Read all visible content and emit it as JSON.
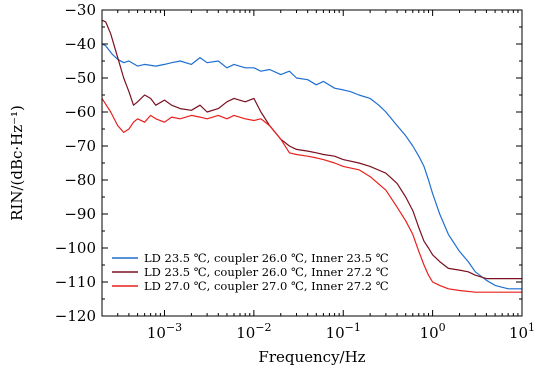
{
  "chart_data": {
    "type": "line",
    "title": "",
    "xlabel": "Frequency/Hz",
    "ylabel": "RIN/(dBc·Hz⁻¹)",
    "xscale": "log",
    "xlim": [
      0.0002,
      10
    ],
    "ylim": [
      -120,
      -30
    ],
    "grid": false,
    "legend_position": "lower-left",
    "x_ticks": [
      {
        "value": 0.001,
        "base": "10",
        "exp": "−3"
      },
      {
        "value": 0.01,
        "base": "10",
        "exp": "−2"
      },
      {
        "value": 0.1,
        "base": "10",
        "exp": "−1"
      },
      {
        "value": 1,
        "base": "10",
        "exp": "0"
      },
      {
        "value": 10,
        "base": "10",
        "exp": "1"
      }
    ],
    "y_ticks": [
      {
        "value": -30,
        "label": "−30"
      },
      {
        "value": -40,
        "label": "−40"
      },
      {
        "value": -50,
        "label": "−50"
      },
      {
        "value": -60,
        "label": "−60"
      },
      {
        "value": -70,
        "label": "−70"
      },
      {
        "value": -80,
        "label": "−80"
      },
      {
        "value": -90,
        "label": "−90"
      },
      {
        "value": -100,
        "label": "−100"
      },
      {
        "value": -110,
        "label": "−110"
      },
      {
        "value": -120,
        "label": "−120"
      }
    ],
    "series": [
      {
        "name": "LD 23.5 ℃, coupler 26.0 ℃, Inner 23.5 ℃",
        "color": "#1f6fd1",
        "x": [
          0.0002,
          0.00022,
          0.00026,
          0.0003,
          0.00035,
          0.0004,
          0.0005,
          0.0006,
          0.0008,
          0.001,
          0.0012,
          0.0015,
          0.002,
          0.0025,
          0.003,
          0.004,
          0.005,
          0.006,
          0.008,
          0.01,
          0.012,
          0.015,
          0.02,
          0.025,
          0.03,
          0.04,
          0.05,
          0.06,
          0.08,
          0.1,
          0.12,
          0.15,
          0.2,
          0.25,
          0.3,
          0.4,
          0.5,
          0.6,
          0.7,
          0.8,
          0.9,
          1.0,
          1.2,
          1.5,
          2.0,
          2.5,
          3.0,
          4.0,
          5.0,
          7.0,
          10.0
        ],
        "y": [
          -40,
          -40.5,
          -43,
          -44.5,
          -45.5,
          -45,
          -46.5,
          -46,
          -46.5,
          -46,
          -45.5,
          -45,
          -46,
          -44,
          -45.5,
          -45,
          -47,
          -46,
          -47,
          -47,
          -48,
          -47.5,
          -49,
          -48,
          -50,
          -50.5,
          -52,
          -51,
          -53,
          -53.5,
          -54,
          -55,
          -56,
          -58,
          -60,
          -64,
          -67,
          -70,
          -73,
          -76,
          -80,
          -84,
          -90,
          -96,
          -101,
          -104,
          -107,
          -109.5,
          -111,
          -112,
          -112
        ]
      },
      {
        "name": "LD 23.5 ℃, coupler 26.0 ℃, Inner 27.2 ℃",
        "color": "#7a1020",
        "x": [
          0.0002,
          0.00022,
          0.00025,
          0.0003,
          0.00035,
          0.0004,
          0.00045,
          0.0005,
          0.0006,
          0.0007,
          0.0008,
          0.001,
          0.0012,
          0.0015,
          0.002,
          0.0025,
          0.003,
          0.004,
          0.005,
          0.006,
          0.008,
          0.01,
          0.012,
          0.015,
          0.02,
          0.025,
          0.03,
          0.04,
          0.05,
          0.06,
          0.08,
          0.1,
          0.15,
          0.2,
          0.3,
          0.4,
          0.5,
          0.6,
          0.7,
          0.8,
          0.9,
          1.0,
          1.2,
          1.5,
          2.0,
          2.5,
          3.0,
          4.0,
          5.0,
          7.0,
          10.0
        ],
        "y": [
          -33,
          -33.5,
          -37,
          -44,
          -50,
          -54,
          -58,
          -57,
          -55,
          -56,
          -58,
          -56.5,
          -58,
          -59,
          -59.5,
          -58,
          -60,
          -59,
          -57,
          -56,
          -57,
          -56,
          -60,
          -64,
          -68,
          -70,
          -71,
          -71.5,
          -72,
          -72.5,
          -73,
          -74,
          -75,
          -76,
          -78,
          -81,
          -85,
          -89,
          -94,
          -98,
          -100,
          -102,
          -104,
          -106,
          -106.5,
          -107,
          -108,
          -109,
          -109,
          -109,
          -109
        ]
      },
      {
        "name": "LD 27.0 ℃, coupler 27.0 ℃, Inner 27.2 ℃",
        "color": "#e8201c",
        "x": [
          0.0002,
          0.00025,
          0.0003,
          0.00035,
          0.0004,
          0.00045,
          0.0005,
          0.0006,
          0.0007,
          0.0008,
          0.001,
          0.0012,
          0.0015,
          0.002,
          0.0025,
          0.003,
          0.004,
          0.005,
          0.006,
          0.008,
          0.01,
          0.012,
          0.015,
          0.02,
          0.025,
          0.03,
          0.04,
          0.05,
          0.06,
          0.08,
          0.1,
          0.15,
          0.2,
          0.3,
          0.4,
          0.5,
          0.6,
          0.7,
          0.8,
          0.9,
          1.0,
          1.2,
          1.5,
          2.0,
          3.0,
          5.0,
          10.0
        ],
        "y": [
          -56,
          -60,
          -64,
          -66,
          -65,
          -63,
          -62,
          -63,
          -61,
          -62,
          -63,
          -61.5,
          -62,
          -61,
          -61.5,
          -62,
          -61,
          -62,
          -61,
          -62,
          -62.5,
          -62,
          -64,
          -68,
          -72,
          -72.5,
          -73,
          -73.5,
          -74,
          -75,
          -76,
          -77,
          -79,
          -83,
          -88,
          -92,
          -96,
          -101,
          -105,
          -108,
          -110,
          -111,
          -112,
          -112.5,
          -113,
          -113,
          -113
        ]
      }
    ]
  }
}
